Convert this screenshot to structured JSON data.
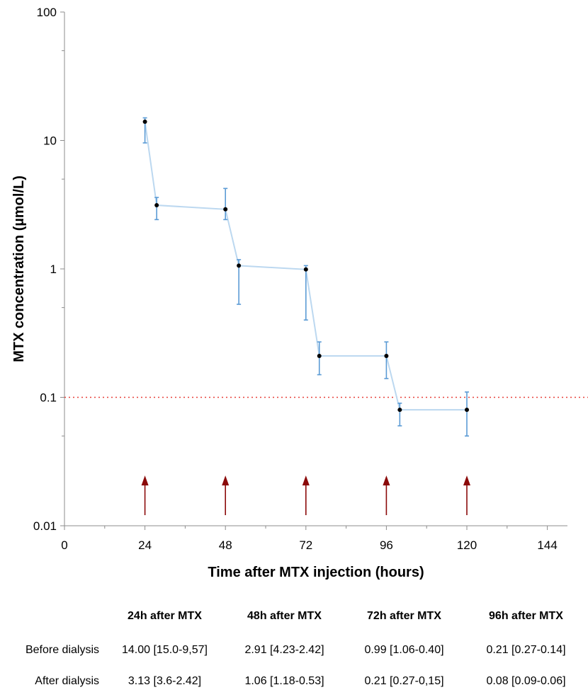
{
  "chart_data": {
    "type": "line",
    "title": "",
    "xlabel": "Time after MTX injection (hours)",
    "ylabel": "MTX concentration (µmol/L)",
    "x_scale": "linear",
    "y_scale": "log",
    "xlim": [
      0,
      150
    ],
    "ylim": [
      0.01,
      100
    ],
    "x_ticks": [
      0,
      24,
      48,
      72,
      96,
      120,
      144
    ],
    "x_tick_labels": [
      "0",
      "24",
      "48",
      "72",
      "96",
      "120",
      "144"
    ],
    "y_ticks": [
      0.01,
      0.1,
      1,
      10,
      100
    ],
    "y_tick_labels": [
      "0.01",
      "0.1",
      "1",
      "10",
      "100"
    ],
    "grid": false,
    "series": [
      {
        "x": [
          24,
          27.5,
          48,
          52,
          72,
          76,
          96,
          100,
          120
        ],
        "y": [
          14.0,
          3.13,
          2.91,
          1.06,
          0.99,
          0.21,
          0.21,
          0.08,
          0.08
        ],
        "err_high": [
          15.0,
          3.6,
          4.23,
          1.18,
          1.06,
          0.27,
          0.27,
          0.09,
          0.11
        ],
        "err_low": [
          9.57,
          2.42,
          2.42,
          0.53,
          0.4,
          0.15,
          0.14,
          0.06,
          0.05
        ],
        "color": "#bcd8f0",
        "marker_color": "#000000",
        "errorbar_color": "#5b9bd5"
      }
    ],
    "reference_line": {
      "y": 0.1,
      "style": "dotted",
      "color": "#e8413a"
    },
    "dialysis_arrows": {
      "x": [
        24,
        48,
        72,
        96,
        120
      ],
      "color": "#8b0a0a"
    }
  },
  "table": {
    "headers": [
      "",
      "24h after MTX",
      "48h after MTX",
      "72h after MTX",
      "96h after MTX"
    ],
    "rows": [
      {
        "label": "Before dialysis",
        "cells": [
          "14.00 [15.0-9,57]",
          "2.91 [4.23-2.42]",
          "0.99 [1.06-0.40]",
          "0.21 [0.27-0.14]"
        ]
      },
      {
        "label": "After dialysis",
        "cells": [
          "3.13 [3.6-2.42]",
          "1.06 [1.18-0.53]",
          "0.21 [0.27-0,15]",
          "0.08 [0.09-0.06]"
        ]
      }
    ]
  }
}
